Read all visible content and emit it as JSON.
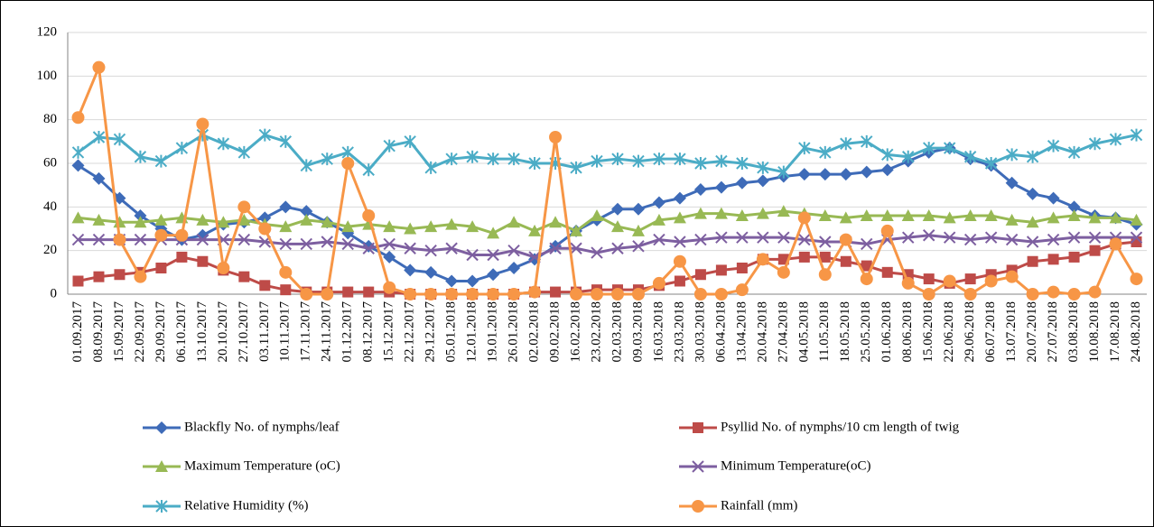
{
  "chart_data": {
    "type": "line",
    "categories": [
      "01.09.2017",
      "08.09.2017",
      "15.09.2017",
      "22.09.2017",
      "29.09.2017",
      "06.10.2017",
      "13.10.2017",
      "20.10.2017",
      "27.10.2017",
      "03.11.2017",
      "10.11.2017",
      "17.11.2017",
      "24.11.2017",
      "01.12.2017",
      "08.12.2017",
      "15.12.2017",
      "22.12.2017",
      "29.12.2017",
      "05.01.2018",
      "12.01.2018",
      "19.01.2018",
      "26.01.2018",
      "02.02.2018",
      "09.02.2018",
      "16.02.2018",
      "23.02.2018",
      "02.03.2018",
      "09.03.2018",
      "16.03.2018",
      "23.03.2018",
      "30.03.2018",
      "06.04.2018",
      "13.04.2018",
      "20.04.2018",
      "27.04.2018",
      "04.05.2018",
      "11.05.2018",
      "18.05.2018",
      "25.05.2018",
      "01.06.2018",
      "08.06.2018",
      "15.06.2018",
      "22.06.2018",
      "29.06.2018",
      "06.07.2018",
      "13.07.2018",
      "20.07.2018",
      "27.07.2018",
      "03.08.2018",
      "10.08.2018",
      "17.08.2018",
      "24.08.2018"
    ],
    "series": [
      {
        "name": "Blackfly No. of nymphs/leaf",
        "color": "#3e6bb8",
        "marker": "diamond",
        "values": [
          59,
          53,
          44,
          36,
          30,
          25,
          27,
          32,
          33,
          35,
          40,
          38,
          33,
          28,
          22,
          17,
          11,
          10,
          6,
          6,
          9,
          12,
          16,
          22,
          29,
          34,
          39,
          39,
          42,
          44,
          48,
          49,
          51,
          52,
          54,
          55,
          55,
          55,
          56,
          57,
          61,
          65,
          67,
          62,
          59,
          51,
          46,
          44,
          40,
          36,
          35,
          32
        ]
      },
      {
        "name": "Psyllid No. of nymphs/10 cm length of twig",
        "color": "#be4b48",
        "marker": "square",
        "values": [
          6,
          8,
          9,
          10,
          12,
          17,
          15,
          11,
          8,
          4,
          2,
          1,
          1,
          1,
          1,
          1,
          0,
          0,
          0,
          0,
          0,
          0,
          1,
          1,
          1,
          2,
          2,
          2,
          4,
          6,
          9,
          11,
          12,
          16,
          16,
          17,
          17,
          15,
          13,
          10,
          9,
          7,
          5,
          7,
          9,
          11,
          15,
          16,
          17,
          20,
          23,
          24
        ]
      },
      {
        "name": "Maximum Temperature (oC)",
        "color": "#98b954",
        "marker": "triangle",
        "values": [
          35,
          34,
          33,
          33,
          34,
          35,
          34,
          33,
          34,
          32,
          31,
          34,
          33,
          31,
          32,
          31,
          30,
          31,
          32,
          31,
          28,
          33,
          29,
          33,
          29,
          36,
          31,
          29,
          34,
          35,
          37,
          37,
          36,
          37,
          38,
          37,
          36,
          35,
          36,
          36,
          36,
          36,
          35,
          36,
          36,
          34,
          33,
          35,
          36,
          35,
          35,
          34
        ]
      },
      {
        "name": "Minimum Temperature(oC)",
        "color": "#7d5fa0",
        "marker": "x",
        "values": [
          25,
          25,
          25,
          25,
          25,
          25,
          25,
          25,
          25,
          24,
          23,
          23,
          24,
          23,
          21,
          23,
          21,
          20,
          21,
          18,
          18,
          20,
          17,
          21,
          21,
          19,
          21,
          22,
          25,
          24,
          25,
          26,
          26,
          26,
          26,
          25,
          24,
          24,
          23,
          25,
          26,
          27,
          26,
          25,
          26,
          25,
          24,
          25,
          26,
          26,
          26,
          26
        ]
      },
      {
        "name": "Relative Humidity (%)",
        "color": "#4bacc6",
        "marker": "asterisk",
        "values": [
          65,
          72,
          71,
          63,
          61,
          67,
          73,
          69,
          65,
          73,
          70,
          59,
          62,
          65,
          57,
          68,
          70,
          58,
          62,
          63,
          62,
          62,
          60,
          60,
          58,
          61,
          62,
          61,
          62,
          62,
          60,
          61,
          60,
          58,
          56,
          67,
          65,
          69,
          70,
          64,
          63,
          67,
          67,
          63,
          60,
          64,
          63,
          68,
          65,
          69,
          71,
          73
        ]
      },
      {
        "name": "Rainfall (mm)",
        "color": "#f79646",
        "marker": "circle",
        "values": [
          81,
          104,
          25,
          8,
          27,
          27,
          78,
          12,
          40,
          30,
          10,
          0,
          0,
          60,
          36,
          3,
          0,
          0,
          0,
          0,
          0,
          0,
          1,
          72,
          0,
          0,
          0,
          0,
          5,
          15,
          0,
          0,
          2,
          16,
          10,
          35,
          9,
          25,
          7,
          29,
          5,
          0,
          6,
          0,
          6,
          8,
          0,
          1,
          0,
          1,
          23,
          7
        ]
      }
    ],
    "ylim": [
      0,
      120
    ],
    "yticks": [
      0,
      20,
      40,
      60,
      80,
      100,
      120
    ],
    "grid": true
  }
}
